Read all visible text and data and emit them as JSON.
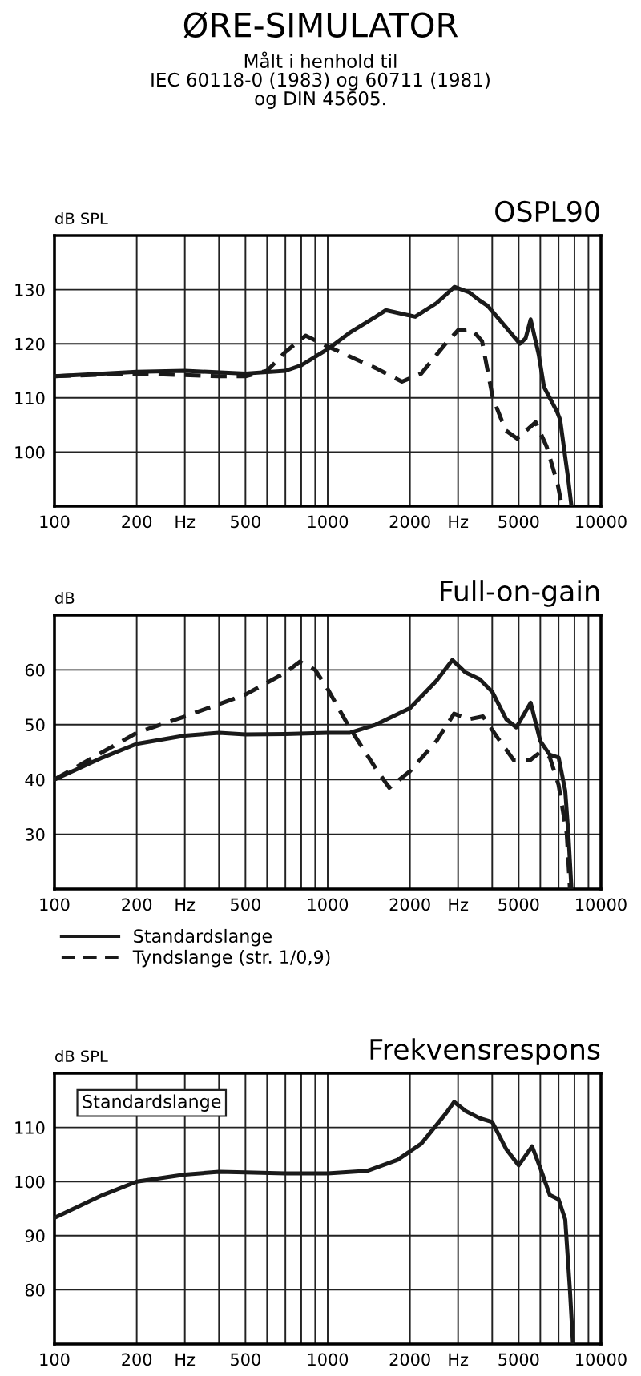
{
  "chart_data": [
    {
      "type": "other",
      "title": "ØRE-SIMULATOR",
      "subtitle": "Målt i henhold til\nIEC 60118-0 (1983) og 60711 (1981)\nog DIN 45605."
    },
    {
      "type": "line",
      "title": "OSPL90",
      "ylabel": "dB SPL",
      "log": "x",
      "xlim": [
        100,
        10000
      ],
      "ylim": [
        90,
        140
      ],
      "xticks": [
        100,
        200,
        {
          "value": 300,
          "label": "Hz"
        },
        {
          "value": 400,
          "label": null
        },
        500,
        {
          "value": 600,
          "label": null
        },
        {
          "value": 700,
          "label": null
        },
        {
          "value": 800,
          "label": null
        },
        {
          "value": 900,
          "label": null
        },
        1000,
        2000,
        {
          "value": 3000,
          "label": "Hz"
        },
        {
          "value": 4000,
          "label": null
        },
        5000,
        {
          "value": 6000,
          "label": null
        },
        {
          "value": 7000,
          "label": null
        },
        {
          "value": 8000,
          "label": null
        },
        {
          "value": 9000,
          "label": null
        },
        10000
      ],
      "yticks": [
        100,
        110,
        120,
        130
      ],
      "grid": true,
      "legend": false,
      "marker": "none",
      "series": [
        {
          "color": "#1a1a1a",
          "line_style": "solid",
          "x": [
            100,
            200,
            300,
            500,
            700,
            800,
            1000,
            1200,
            1500,
            1630,
            2090,
            2500,
            2910,
            3300,
            3600,
            3850,
            4500,
            5050,
            5300,
            5530,
            5920,
            6190,
            6900,
            7090,
            7590,
            7800
          ],
          "values": [
            114,
            114.8,
            115,
            114.5,
            115,
            116,
            119,
            122,
            125,
            126.2,
            125,
            127.5,
            130.5,
            129.5,
            128,
            127,
            123,
            120,
            121,
            124.5,
            118,
            112,
            107.5,
            106,
            95,
            90
          ]
        },
        {
          "color": "#1a1a1a",
          "line_style": "dashed",
          "x": [
            100,
            200,
            400,
            500,
            600,
            700,
            830,
            1000,
            1500,
            1870,
            2200,
            2700,
            3000,
            3360,
            3670,
            4020,
            4480,
            4930,
            5770,
            6330,
            6950,
            7200
          ],
          "values": [
            114,
            114.5,
            114,
            114,
            115,
            118.5,
            121.5,
            119.5,
            115.5,
            113,
            114.5,
            120,
            122.5,
            122.7,
            120.5,
            110,
            104,
            102.5,
            105.5,
            101,
            94,
            90
          ]
        }
      ]
    },
    {
      "type": "line",
      "title": "Full-on-gain",
      "ylabel": "dB",
      "log": "x",
      "xlim": [
        100,
        10000
      ],
      "ylim": [
        20,
        70
      ],
      "xticks": [
        100,
        200,
        {
          "value": 300,
          "label": "Hz"
        },
        {
          "value": 400,
          "label": null
        },
        500,
        {
          "value": 600,
          "label": null
        },
        {
          "value": 700,
          "label": null
        },
        {
          "value": 800,
          "label": null
        },
        {
          "value": 900,
          "label": null
        },
        1000,
        2000,
        {
          "value": 3000,
          "label": "Hz"
        },
        {
          "value": 4000,
          "label": null
        },
        5000,
        {
          "value": 6000,
          "label": null
        },
        {
          "value": 7000,
          "label": null
        },
        {
          "value": 8000,
          "label": null
        },
        {
          "value": 9000,
          "label": null
        },
        10000
      ],
      "yticks": [
        30,
        40,
        50,
        60
      ],
      "grid": true,
      "legend": "bottom",
      "marker": "none",
      "series": [
        {
          "name": "Standardslange",
          "color": "#1a1a1a",
          "line_style": "solid",
          "x": [
            100,
            150,
            200,
            300,
            400,
            500,
            700,
            1000,
            1200,
            1500,
            2000,
            2500,
            2860,
            3200,
            3600,
            4000,
            4500,
            4900,
            5530,
            6000,
            6500,
            7000,
            7400,
            7600,
            7800
          ],
          "values": [
            40,
            44,
            46.5,
            48,
            48.5,
            48.2,
            48.3,
            48.5,
            48.5,
            50,
            53,
            58,
            61.8,
            59.5,
            58.3,
            56,
            51,
            49.5,
            54,
            47,
            44.5,
            44,
            38,
            30,
            20
          ]
        },
        {
          "name": "Tyndslange (str. 1/0,9)",
          "color": "#1a1a1a",
          "line_style": "dashed",
          "x": [
            100,
            150,
            200,
            300,
            500,
            700,
            790,
            900,
            1000,
            1200,
            1500,
            1680,
            2000,
            2500,
            2900,
            3300,
            3700,
            4200,
            4800,
            5500,
            6000,
            6500,
            7000,
            7500,
            7700
          ],
          "values": [
            40,
            45,
            48.5,
            51.5,
            55.5,
            59.5,
            61.5,
            60,
            56.5,
            49.5,
            42,
            38.5,
            41.5,
            47,
            52,
            51,
            51.5,
            47.5,
            43.5,
            43.5,
            45,
            44,
            39,
            30,
            20
          ]
        }
      ]
    },
    {
      "type": "line",
      "title": "Frekvensrespons",
      "ylabel": "dB SPL",
      "log": "x",
      "xlim": [
        100,
        10000
      ],
      "ylim": [
        70,
        120
      ],
      "xticks": [
        100,
        200,
        {
          "value": 300,
          "label": "Hz"
        },
        {
          "value": 400,
          "label": null
        },
        500,
        {
          "value": 600,
          "label": null
        },
        {
          "value": 700,
          "label": null
        },
        {
          "value": 800,
          "label": null
        },
        {
          "value": 900,
          "label": null
        },
        1000,
        2000,
        {
          "value": 3000,
          "label": "Hz"
        },
        {
          "value": 4000,
          "label": null
        },
        5000,
        {
          "value": 6000,
          "label": null
        },
        {
          "value": 7000,
          "label": null
        },
        {
          "value": 8000,
          "label": null
        },
        {
          "value": 9000,
          "label": null
        },
        10000
      ],
      "yticks": [
        80,
        90,
        100,
        110
      ],
      "grid": true,
      "legend": false,
      "marker": "none",
      "annotations": [
        "Standardslange"
      ],
      "series": [
        {
          "color": "#1a1a1a",
          "line_style": "solid",
          "x": [
            100,
            150,
            200,
            300,
            400,
            500,
            700,
            1000,
            1400,
            1800,
            2200,
            2700,
            2900,
            3200,
            3600,
            4000,
            4500,
            5000,
            5600,
            6000,
            6500,
            7000,
            7400,
            7700,
            7900
          ],
          "values": [
            93.3,
            97.5,
            100,
            101.3,
            101.8,
            101.7,
            101.5,
            101.5,
            102,
            104,
            107,
            112.5,
            114.7,
            113,
            111.7,
            111,
            106,
            103,
            106.5,
            102.5,
            97.5,
            96.7,
            93,
            80,
            70
          ]
        }
      ]
    }
  ]
}
